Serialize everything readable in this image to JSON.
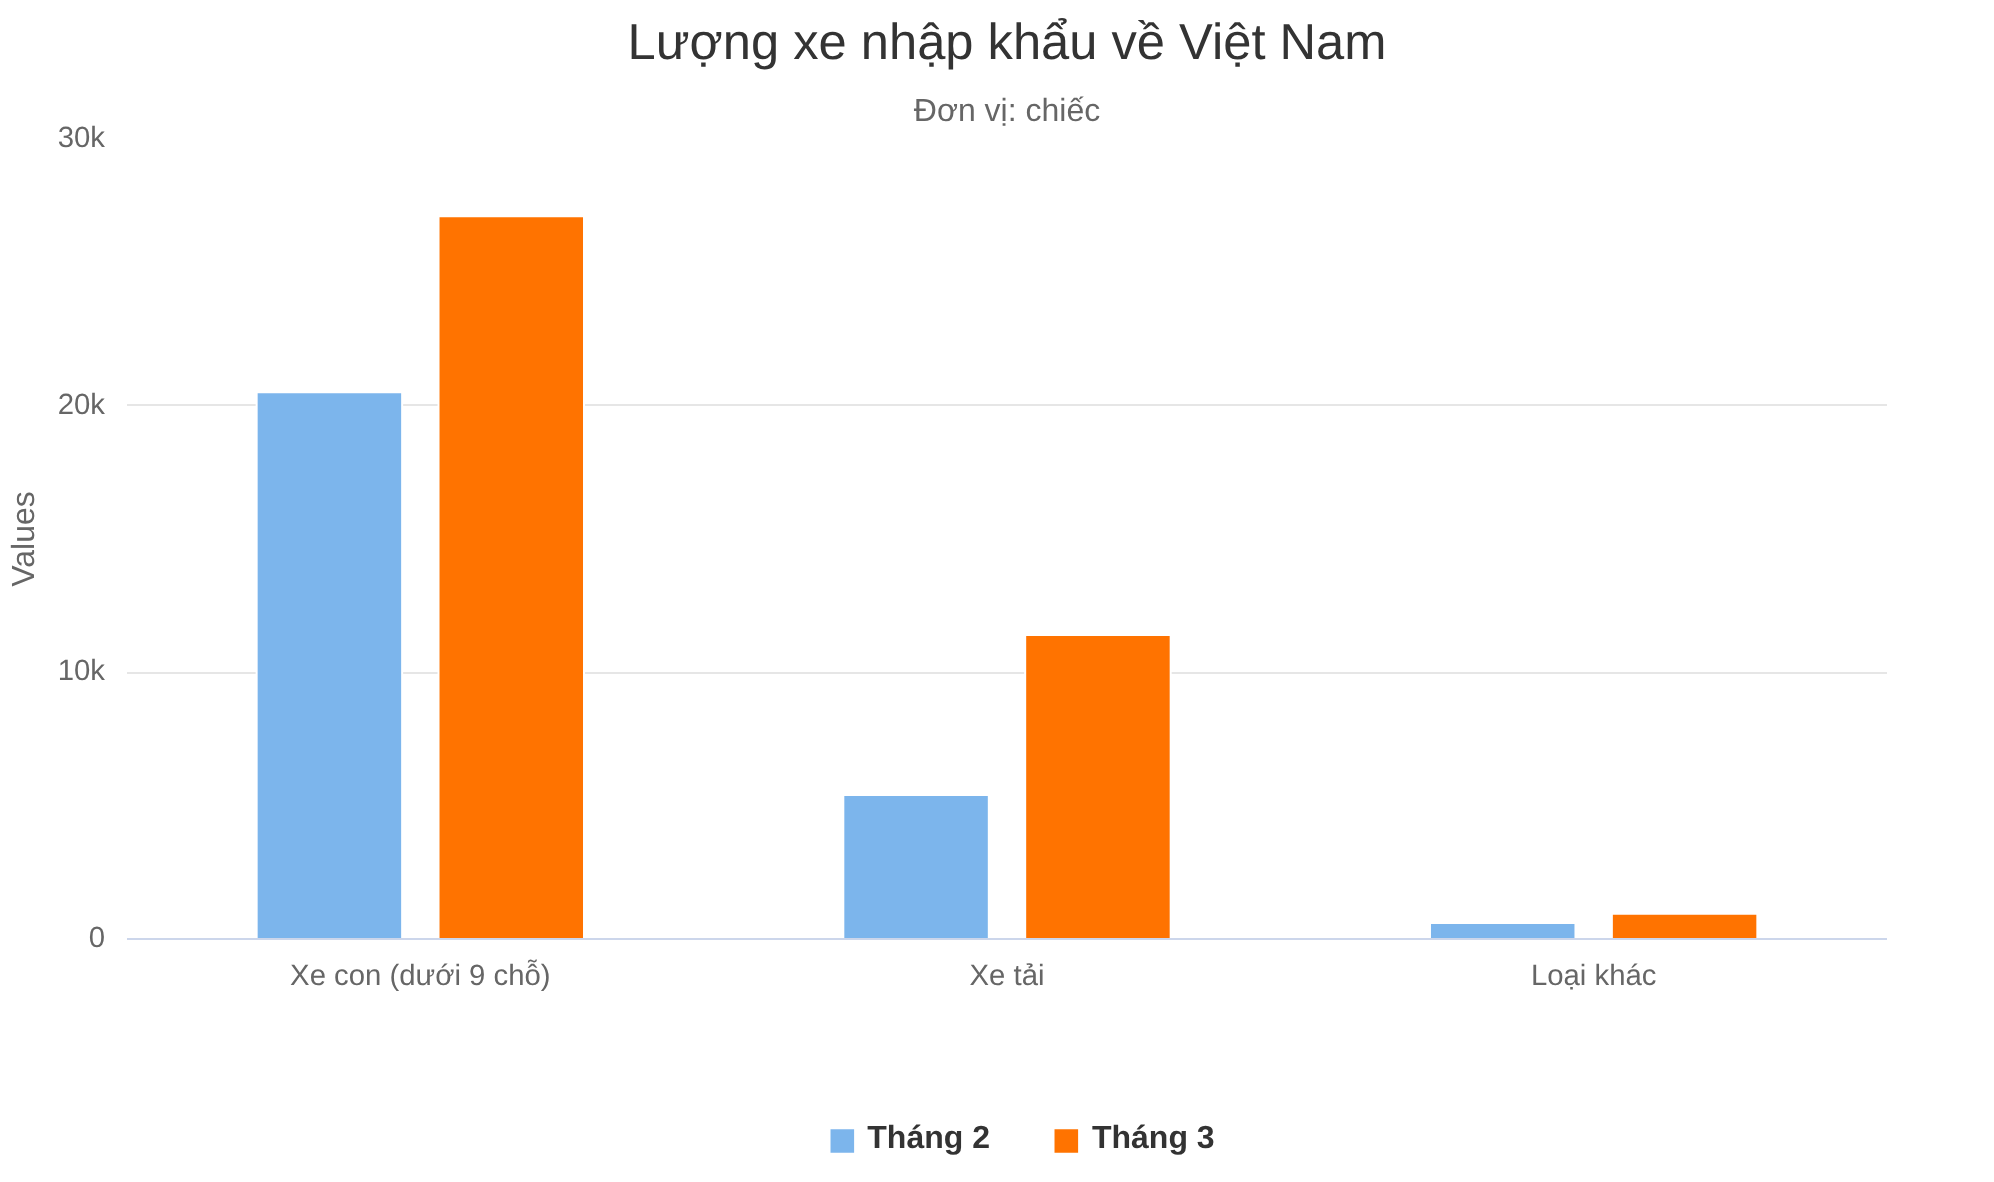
{
  "chart_data": {
    "type": "bar",
    "title": "Lượng xe nhập khẩu về Việt Nam",
    "subtitle": "Đơn vị: chiếc",
    "ylabel": "Values",
    "categories": [
      "Xe con (dưới 9 chỗ)",
      "Xe tải",
      "Loại khác"
    ],
    "series": [
      {
        "name": "Tháng 2",
        "color": "#7cb5ec",
        "values": [
          20500,
          5400,
          600
        ]
      },
      {
        "name": "Tháng 3",
        "color": "#ff7300",
        "values": [
          27100,
          11400,
          950
        ]
      }
    ],
    "ylim": [
      0,
      30000
    ],
    "yticks": [
      {
        "value": 0,
        "label": "0"
      },
      {
        "value": 10000,
        "label": "10k"
      },
      {
        "value": 20000,
        "label": "20k"
      },
      {
        "value": 30000,
        "label": "30k"
      }
    ],
    "grid": "y",
    "legend": "bottom"
  }
}
